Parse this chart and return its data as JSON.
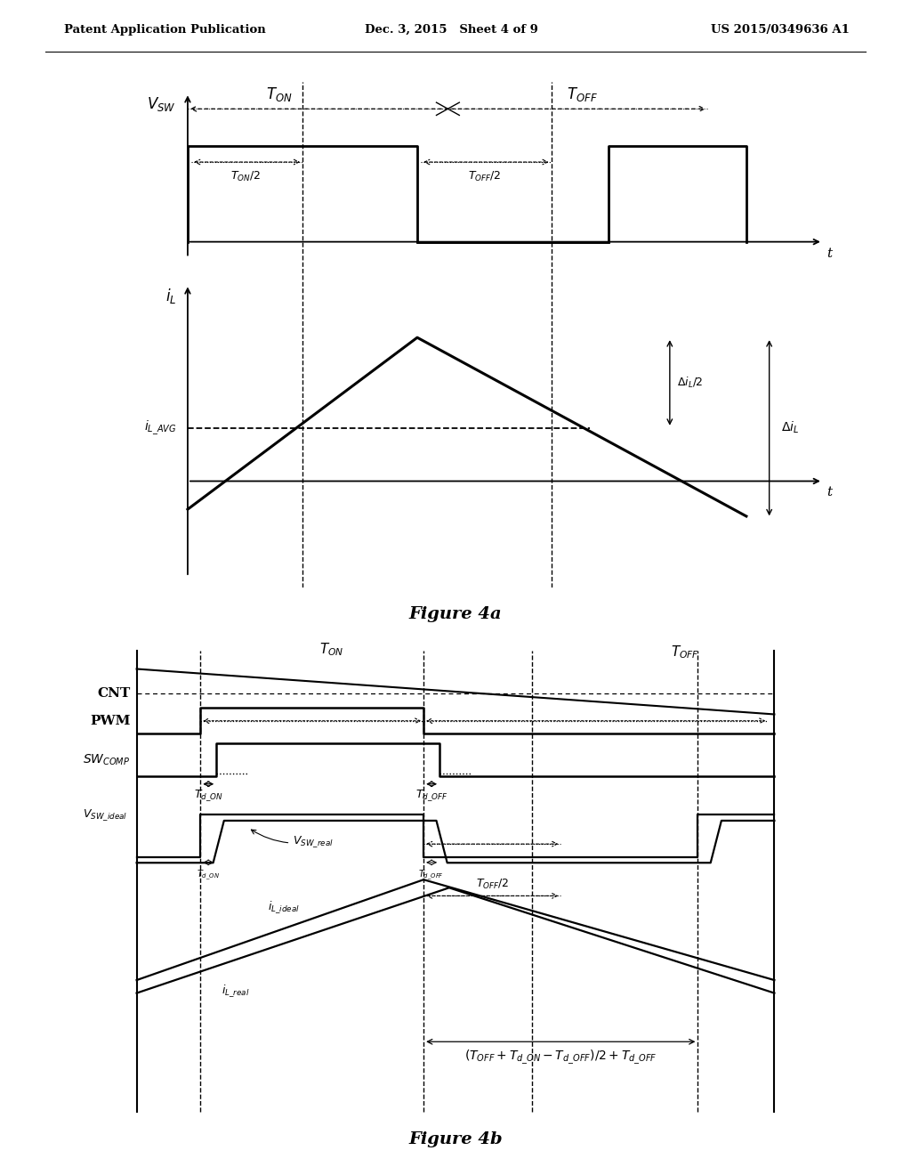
{
  "header_left": "Patent Application Publication",
  "header_mid": "Dec. 3, 2015   Sheet 4 of 9",
  "header_right": "US 2015/0349636 A1",
  "fig4a_caption": "Figure 4a",
  "fig4b_caption": "Figure 4b",
  "bg_color": "#ffffff"
}
